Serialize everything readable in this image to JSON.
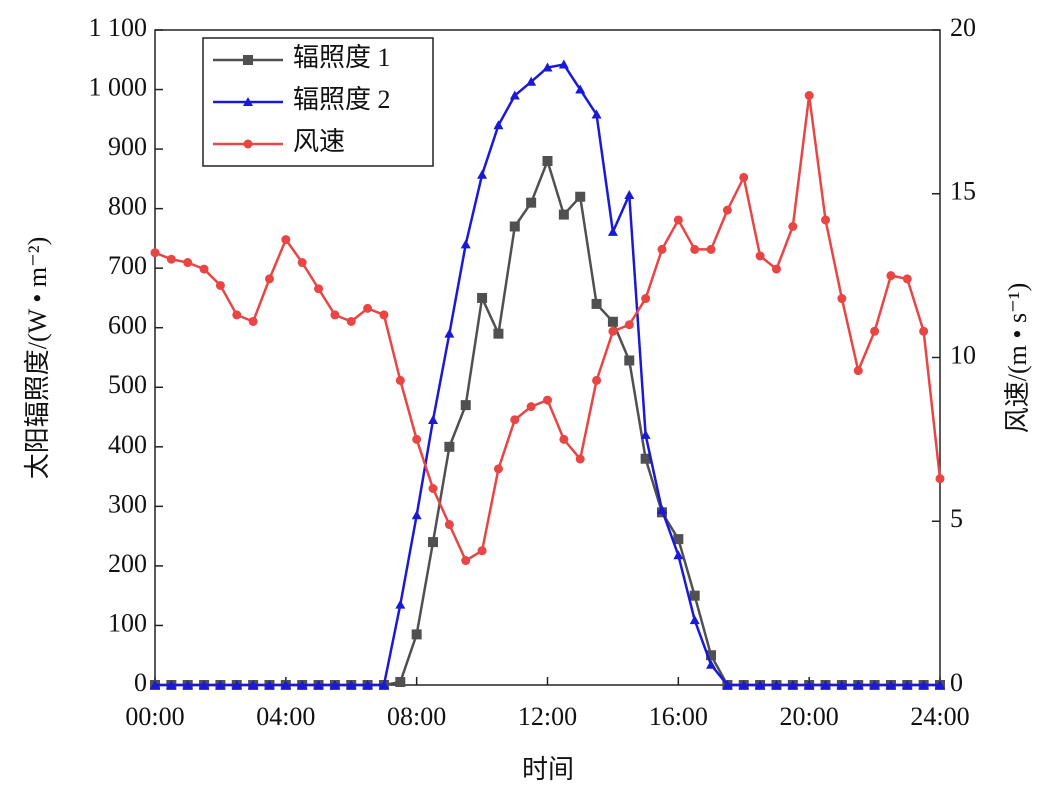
{
  "chart_data": {
    "type": "line",
    "x_label": "时间",
    "y_label": "太阳辐照度/(W • m⁻²)",
    "y2_label": "风速/(m • s⁻¹)",
    "x": [
      0,
      0.5,
      1,
      1.5,
      2,
      2.5,
      3,
      3.5,
      4,
      4.5,
      5,
      5.5,
      6,
      6.5,
      7,
      7.5,
      8,
      8.5,
      9,
      9.5,
      10,
      10.5,
      11,
      11.5,
      12,
      12.5,
      13,
      13.5,
      14,
      14.5,
      15,
      15.5,
      16,
      16.5,
      17,
      17.5,
      18,
      18.5,
      19,
      19.5,
      20,
      20.5,
      21,
      21.5,
      22,
      22.5,
      23,
      23.5,
      24
    ],
    "xlim": [
      0,
      24
    ],
    "xticks": [
      {
        "value": 0,
        "label": "00:00"
      },
      {
        "value": 4,
        "label": "04:00"
      },
      {
        "value": 8,
        "label": "08:00"
      },
      {
        "value": 12,
        "label": "12:00"
      },
      {
        "value": 16,
        "label": "16:00"
      },
      {
        "value": 20,
        "label": "20:00"
      },
      {
        "value": 24,
        "label": "24:00"
      }
    ],
    "ylim": [
      0,
      1100
    ],
    "yticks": [
      0,
      100,
      200,
      300,
      400,
      500,
      600,
      700,
      800,
      900,
      {
        "value": 1000,
        "label": "1 000"
      },
      {
        "value": 1100,
        "label": "1 100"
      }
    ],
    "y2lim": [
      0,
      20
    ],
    "y2ticks": [
      0,
      5,
      10,
      15,
      20
    ],
    "legend": "upper left",
    "series": [
      {
        "name": "辐照度 1",
        "color": "#505050",
        "marker": "square",
        "values": [
          0,
          0,
          0,
          0,
          0,
          0,
          0,
          0,
          0,
          0,
          0,
          0,
          0,
          0,
          0,
          5,
          85,
          240,
          400,
          470,
          650,
          590,
          770,
          810,
          880,
          790,
          820,
          640,
          610,
          545,
          380,
          290,
          245,
          150,
          50,
          0,
          0,
          0,
          0,
          0,
          0,
          0,
          0,
          0,
          0,
          0,
          0,
          0,
          0
        ]
      },
      {
        "name": "辐照度 2",
        "color": "#1a1ad6",
        "marker": "triangle",
        "values": [
          0,
          0,
          0,
          0,
          0,
          0,
          0,
          0,
          0,
          0,
          0,
          0,
          0,
          0,
          0,
          135,
          285,
          445,
          590,
          740,
          857,
          940,
          990,
          1013,
          1037,
          1042,
          1000,
          958,
          761,
          823,
          420,
          294,
          218,
          109,
          34,
          0,
          0,
          0,
          0,
          0,
          0,
          0,
          0,
          0,
          0,
          0,
          0,
          0,
          0
        ]
      },
      {
        "name": "风速",
        "color": "#e84545",
        "marker": "circle",
        "axis": "y2",
        "values": [
          13.2,
          13.0,
          12.9,
          12.7,
          12.2,
          11.3,
          11.1,
          12.4,
          13.6,
          12.9,
          12.1,
          11.3,
          11.1,
          11.5,
          11.3,
          9.3,
          7.5,
          6.0,
          4.9,
          3.8,
          4.1,
          6.6,
          8.1,
          8.5,
          8.7,
          7.5,
          6.9,
          9.3,
          10.8,
          11.0,
          11.8,
          13.3,
          14.2,
          13.3,
          13.3,
          14.5,
          15.5,
          13.1,
          12.7,
          14.0,
          18.0,
          14.2,
          11.8,
          9.6,
          10.8,
          12.5,
          12.4,
          10.8,
          6.3
        ]
      }
    ]
  }
}
